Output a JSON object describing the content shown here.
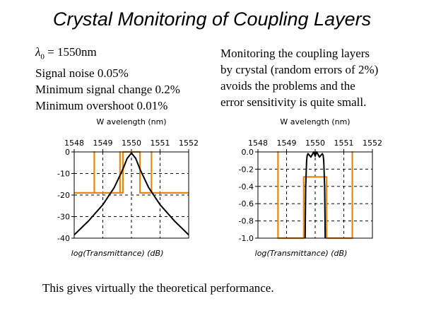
{
  "slide": {
    "title": "Crystal Monitoring of Coupling Layers",
    "params": {
      "lambda_symbol": "λ",
      "lambda_sub": "0",
      "lambda_value": " = 1550nm",
      "noise": "Signal noise 0.05%",
      "min_change": "Minimum signal change 0.2%",
      "min_overshoot": "Minimum overshoot 0.01%"
    },
    "note": {
      "line1": "Monitoring the coupling layers",
      "line2": "by crystal (random errors of 2%)",
      "line3": "avoids the problems and the",
      "line4": "error sensitivity is quite small."
    },
    "footer": "This gives virtually the theoretical performance."
  },
  "colors": {
    "orange": "#e08a10",
    "black": "#000000"
  },
  "chart_data": [
    {
      "type": "line",
      "xlabel": "W avelength (nm)",
      "ylabel": "log(Transmittance) (dB)",
      "xlim": [
        1548,
        1552
      ],
      "ylim": [
        -40,
        0
      ],
      "xticks": [
        "1548",
        "1549",
        "1550",
        "1551",
        "1552"
      ],
      "yticks": [
        "0",
        "-10",
        "-20",
        "-30",
        "-40"
      ],
      "grid": true,
      "series": [
        {
          "color": "#000000",
          "x": [
            1548,
            1548.5,
            1549,
            1549.4,
            1549.7,
            1549.85,
            1550,
            1550.15,
            1550.3,
            1550.6,
            1551,
            1551.5,
            1552
          ],
          "y": [
            -38.5,
            -32,
            -24.5,
            -16.5,
            -8,
            -3,
            -0.5,
            -3,
            -8,
            -16.5,
            -24.5,
            -32,
            -38.5
          ]
        },
        {
          "color": "#e08a10",
          "x": [
            1548,
            1548.7,
            1548.7,
            1548.7,
            1548.7,
            1549.6,
            1549.6,
            1549.6,
            1549.7,
            1549.7,
            1550.3,
            1550.3,
            1550.3,
            1550.3,
            1550.7,
            1550.7,
            1550.7,
            1552
          ],
          "y": [
            -19,
            -19,
            0,
            -19,
            -19,
            -19,
            0,
            -19,
            -19,
            0,
            0,
            -19,
            -19,
            -19,
            -19,
            0,
            -19,
            -19
          ]
        }
      ]
    },
    {
      "type": "line",
      "xlabel": "W avelength (nm)",
      "ylabel": "log(Transmittance) (dB)",
      "xlim": [
        1548,
        1552
      ],
      "ylim": [
        -1.0,
        0.0
      ],
      "xticks": [
        "1548",
        "1549",
        "1550",
        "1551",
        "1552"
      ],
      "yticks": [
        "0.0",
        "-0.2",
        "-0.4",
        "-0.6",
        "-0.8",
        "-1.0"
      ],
      "grid": true,
      "series": [
        {
          "color": "#000000",
          "x": [
            1549.65,
            1549.67,
            1549.7,
            1549.72,
            1549.75,
            1549.85,
            1549.95,
            1550.0,
            1550.05,
            1550.15,
            1550.25,
            1550.28,
            1550.3,
            1550.33,
            1550.35
          ],
          "y": [
            -1.0,
            -0.4,
            -0.1,
            -0.04,
            -0.02,
            -0.06,
            0.0,
            -0.05,
            0.0,
            -0.06,
            -0.02,
            -0.04,
            -0.1,
            -0.4,
            -1.0
          ]
        },
        {
          "color": "#e08a10",
          "x": [
            1548.7,
            1548.7,
            1548.7,
            1549.6,
            1549.6,
            1549.6,
            1550.4,
            1550.4,
            1550.4,
            1551.3,
            1551.3,
            1551.3
          ],
          "y": [
            -1.0,
            0.0,
            -1.0,
            -1.0,
            -0.29,
            -0.29,
            -0.29,
            -0.29,
            -1.0,
            -1.0,
            0.0,
            -1.0
          ]
        }
      ]
    }
  ]
}
